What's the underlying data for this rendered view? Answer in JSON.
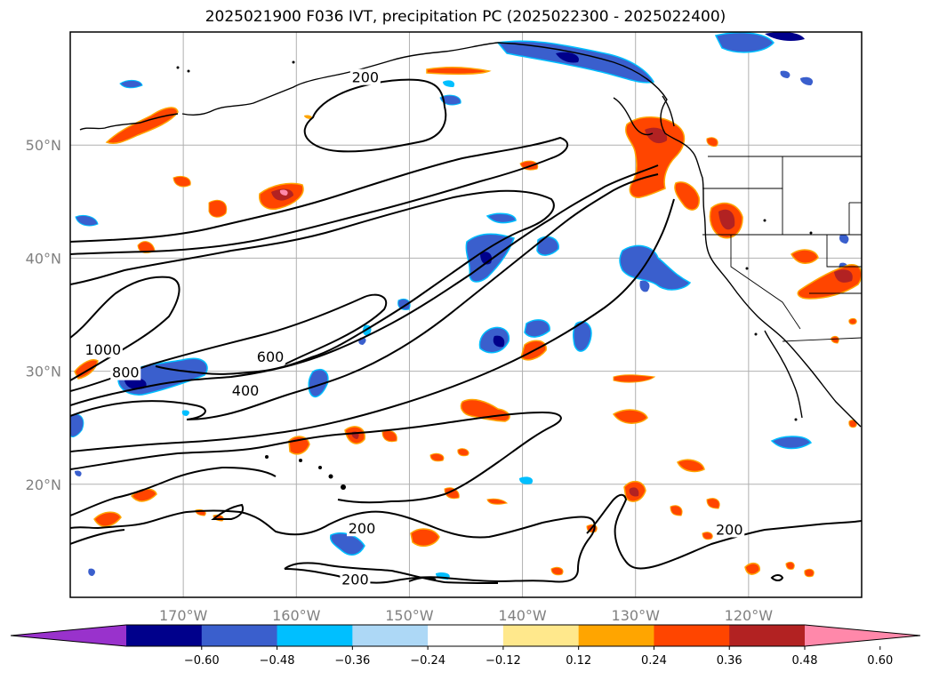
{
  "title": "2025021900 F036 IVT, precipitation PC (2025022300 - 2025022400)",
  "map": {
    "lon_range": [
      -180,
      -110
    ],
    "lat_range": [
      10,
      60
    ],
    "lat_ticks": [
      {
        "value": 20,
        "label": "20°N"
      },
      {
        "value": 30,
        "label": "30°N"
      },
      {
        "value": 40,
        "label": "40°N"
      },
      {
        "value": 50,
        "label": "50°N"
      }
    ],
    "lon_ticks": [
      {
        "value": -170,
        "label": "170°W"
      },
      {
        "value": -160,
        "label": "160°W"
      },
      {
        "value": -150,
        "label": "150°W"
      },
      {
        "value": -140,
        "label": "140°W"
      },
      {
        "value": -130,
        "label": "130°W"
      },
      {
        "value": -120,
        "label": "120°W"
      }
    ],
    "grid": true,
    "ivt_contour_labels": [
      {
        "text": "200",
        "lon": -153.9,
        "lat": 55.7
      },
      {
        "text": "1000",
        "lon": -177.1,
        "lat": 31.6
      },
      {
        "text": "800",
        "lon": -175.1,
        "lat": 29.6
      },
      {
        "text": "600",
        "lon": -162.3,
        "lat": 31.0
      },
      {
        "text": "400",
        "lon": -164.5,
        "lat": 28.0
      },
      {
        "text": "200",
        "lon": -154.2,
        "lat": 15.8
      },
      {
        "text": "200",
        "lon": -154.8,
        "lat": 11.3
      },
      {
        "text": "200",
        "lon": -121.7,
        "lat": 15.7
      }
    ]
  },
  "colorbar": {
    "colors": [
      "#9932cc",
      "#00008b",
      "#3a5fcd",
      "#00bfff",
      "#add8f6",
      "#ffffff",
      "#ffe88c",
      "#ffa500",
      "#ff4500",
      "#b22222",
      "#ff88aa"
    ],
    "labels": [
      "−0.60",
      "−0.48",
      "−0.36",
      "−0.24",
      "−0.12",
      "0.12",
      "0.24",
      "0.36",
      "0.48",
      "0.60"
    ]
  }
}
